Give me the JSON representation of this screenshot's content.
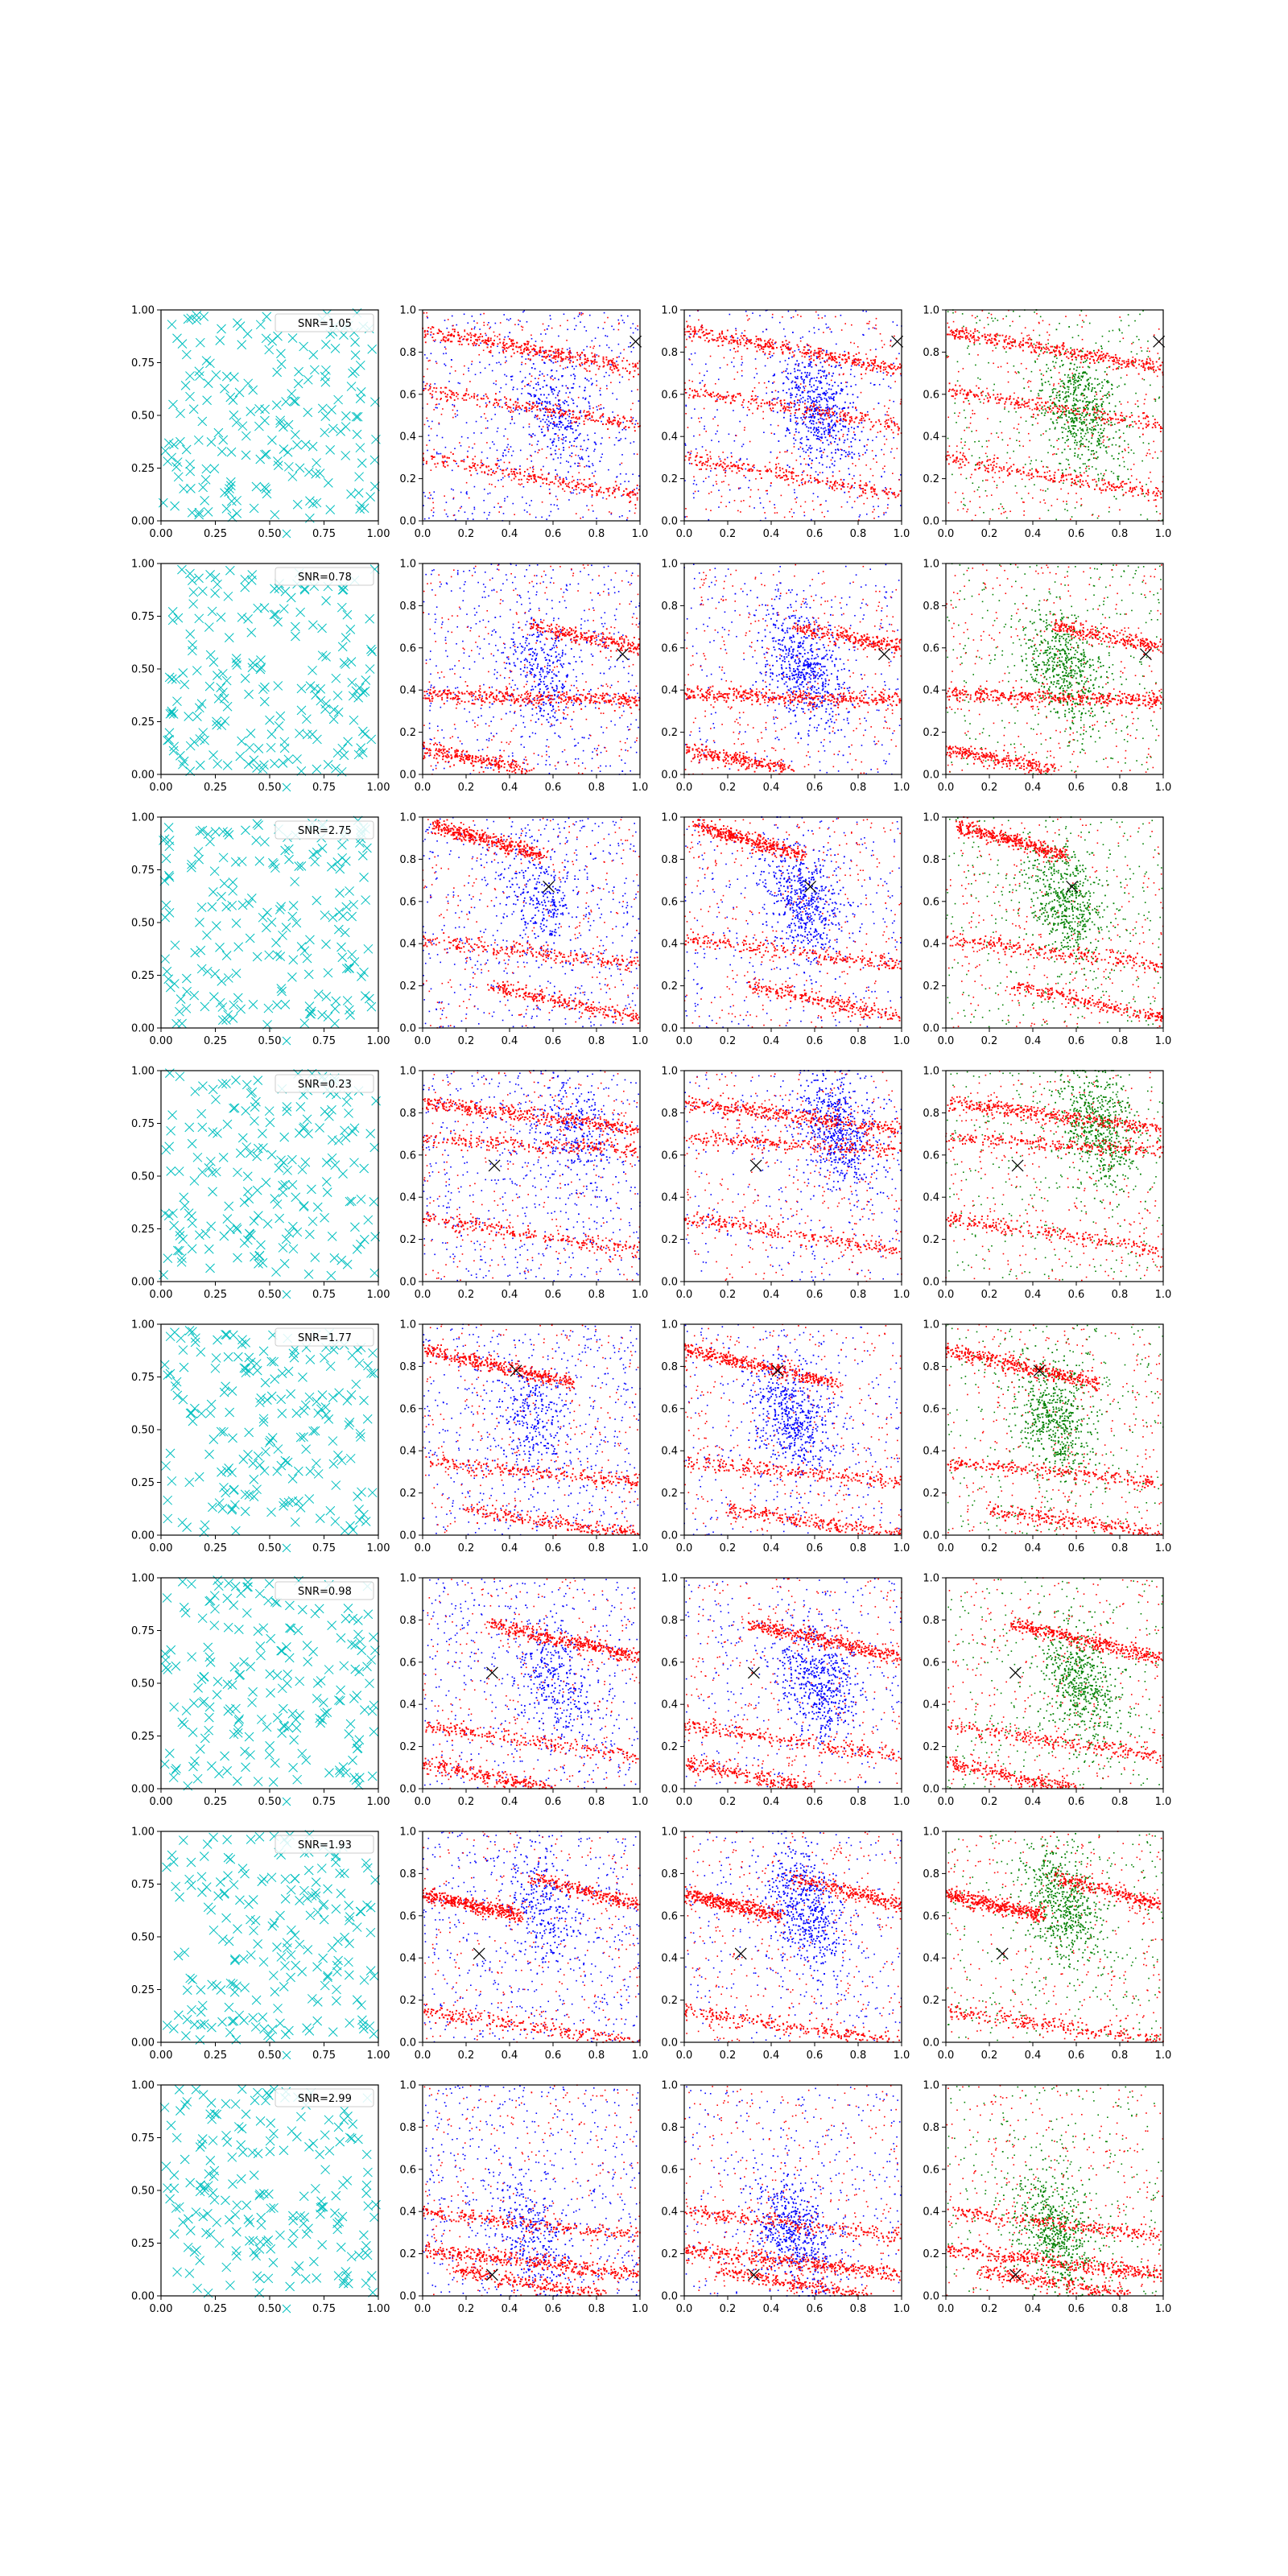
{
  "figure": {
    "rows": 8,
    "columns": 4,
    "tick_labels_col1": [
      "0.00",
      "0.25",
      "0.50",
      "0.75",
      "1.00"
    ],
    "tick_labels_other": [
      "0.0",
      "0.2",
      "0.4",
      "0.6",
      "0.8",
      "1.0"
    ],
    "colors": {
      "scatter_cyan": "#00bfbf",
      "points_red": "#ff0000",
      "points_blue": "#0000ff",
      "points_green": "#008000",
      "marker_black": "#000000",
      "axes": "#000000"
    }
  },
  "chart_data": [
    {
      "type": "scatter",
      "row": 1,
      "marker": "x",
      "color": "cyan",
      "legend": "SNR=1.05",
      "xlim": [
        0,
        1
      ],
      "ylim": [
        0,
        1
      ],
      "grid": false,
      "density_panels": [
        {
          "colors": [
            "red",
            "blue"
          ]
        },
        {
          "colors": [
            "red",
            "blue"
          ]
        },
        {
          "colors": [
            "red",
            "green"
          ]
        }
      ],
      "marked_point": [
        0.98,
        0.85
      ],
      "red_bands": [
        {
          "x0": 0.0,
          "y0": 0.9,
          "x1": 1.0,
          "y1": 0.72
        },
        {
          "x0": 0.0,
          "y0": 0.62,
          "x1": 1.0,
          "y1": 0.45
        },
        {
          "x0": 0.0,
          "y0": 0.3,
          "x1": 1.0,
          "y1": 0.12
        }
      ],
      "blue_blob": {
        "x": 0.62,
        "y": 0.52
      }
    },
    {
      "type": "scatter",
      "row": 2,
      "marker": "x",
      "color": "cyan",
      "legend": "SNR=0.78",
      "xlim": [
        0,
        1
      ],
      "ylim": [
        0,
        1
      ],
      "grid": false,
      "density_panels": [
        {
          "colors": [
            "red",
            "blue"
          ]
        },
        {
          "colors": [
            "red",
            "blue"
          ]
        },
        {
          "colors": [
            "red",
            "green"
          ]
        }
      ],
      "marked_point": [
        0.92,
        0.57
      ],
      "red_bands": [
        {
          "x0": 0.0,
          "y0": 0.38,
          "x1": 1.0,
          "y1": 0.35
        },
        {
          "x0": 0.0,
          "y0": 0.12,
          "x1": 0.5,
          "y1": 0.02
        },
        {
          "x0": 0.5,
          "y0": 0.7,
          "x1": 1.0,
          "y1": 0.6
        }
      ],
      "blue_blob": {
        "x": 0.55,
        "y": 0.5
      }
    },
    {
      "type": "scatter",
      "row": 3,
      "marker": "x",
      "color": "cyan",
      "legend": "SNR=2.75",
      "xlim": [
        0,
        1
      ],
      "ylim": [
        0,
        1
      ],
      "grid": false,
      "density_panels": [
        {
          "colors": [
            "red",
            "blue"
          ]
        },
        {
          "colors": [
            "red",
            "blue"
          ]
        },
        {
          "colors": [
            "red",
            "green"
          ]
        }
      ],
      "marked_point": [
        0.58,
        0.67
      ],
      "red_bands": [
        {
          "x0": 0.05,
          "y0": 0.96,
          "x1": 0.55,
          "y1": 0.82
        },
        {
          "x0": 0.0,
          "y0": 0.42,
          "x1": 1.0,
          "y1": 0.3
        },
        {
          "x0": 0.3,
          "y0": 0.2,
          "x1": 1.0,
          "y1": 0.05
        }
      ],
      "blue_blob": {
        "x": 0.55,
        "y": 0.6
      }
    },
    {
      "type": "scatter",
      "row": 4,
      "marker": "x",
      "color": "cyan",
      "legend": "SNR=0.23",
      "xlim": [
        0,
        1
      ],
      "ylim": [
        0,
        1
      ],
      "grid": false,
      "density_panels": [
        {
          "colors": [
            "red",
            "blue"
          ]
        },
        {
          "colors": [
            "red",
            "blue"
          ]
        },
        {
          "colors": [
            "red",
            "green"
          ]
        }
      ],
      "marked_point": [
        0.33,
        0.55
      ],
      "red_bands": [
        {
          "x0": 0.0,
          "y0": 0.85,
          "x1": 1.0,
          "y1": 0.72
        },
        {
          "x0": 0.0,
          "y0": 0.68,
          "x1": 1.0,
          "y1": 0.62
        },
        {
          "x0": 0.0,
          "y0": 0.3,
          "x1": 1.0,
          "y1": 0.15
        }
      ],
      "blue_blob": {
        "x": 0.7,
        "y": 0.72
      }
    },
    {
      "type": "scatter",
      "row": 5,
      "marker": "x",
      "color": "cyan",
      "legend": "SNR=1.77",
      "xlim": [
        0,
        1
      ],
      "ylim": [
        0,
        1
      ],
      "grid": false,
      "density_panels": [
        {
          "colors": [
            "red",
            "blue"
          ]
        },
        {
          "colors": [
            "red",
            "blue"
          ]
        },
        {
          "colors": [
            "red",
            "green"
          ]
        }
      ],
      "marked_point": [
        0.43,
        0.78
      ],
      "red_bands": [
        {
          "x0": 0.0,
          "y0": 0.88,
          "x1": 0.7,
          "y1": 0.72
        },
        {
          "x0": 0.0,
          "y0": 0.35,
          "x1": 1.0,
          "y1": 0.25
        },
        {
          "x0": 0.2,
          "y0": 0.12,
          "x1": 1.0,
          "y1": 0.0
        }
      ],
      "blue_blob": {
        "x": 0.5,
        "y": 0.55
      }
    },
    {
      "type": "scatter",
      "row": 6,
      "marker": "x",
      "color": "cyan",
      "legend": "SNR=0.98",
      "xlim": [
        0,
        1
      ],
      "ylim": [
        0,
        1
      ],
      "grid": false,
      "density_panels": [
        {
          "colors": [
            "red",
            "blue"
          ]
        },
        {
          "colors": [
            "red",
            "blue"
          ]
        },
        {
          "colors": [
            "red",
            "green"
          ]
        }
      ],
      "marked_point": [
        0.32,
        0.55
      ],
      "red_bands": [
        {
          "x0": 0.3,
          "y0": 0.78,
          "x1": 1.0,
          "y1": 0.62
        },
        {
          "x0": 0.0,
          "y0": 0.3,
          "x1": 1.0,
          "y1": 0.15
        },
        {
          "x0": 0.0,
          "y0": 0.12,
          "x1": 0.6,
          "y1": 0.0
        }
      ],
      "blue_blob": {
        "x": 0.62,
        "y": 0.5
      }
    },
    {
      "type": "scatter",
      "row": 7,
      "marker": "x",
      "color": "cyan",
      "legend": "SNR=1.93",
      "xlim": [
        0,
        1
      ],
      "ylim": [
        0,
        1
      ],
      "grid": false,
      "density_panels": [
        {
          "colors": [
            "red",
            "blue"
          ]
        },
        {
          "colors": [
            "red",
            "blue"
          ]
        },
        {
          "colors": [
            "red",
            "green"
          ]
        }
      ],
      "marked_point": [
        0.26,
        0.42
      ],
      "red_bands": [
        {
          "x0": 0.0,
          "y0": 0.7,
          "x1": 0.45,
          "y1": 0.6
        },
        {
          "x0": 0.5,
          "y0": 0.78,
          "x1": 1.0,
          "y1": 0.65
        },
        {
          "x0": 0.0,
          "y0": 0.15,
          "x1": 1.0,
          "y1": 0.0
        }
      ],
      "blue_blob": {
        "x": 0.55,
        "y": 0.65
      }
    },
    {
      "type": "scatter",
      "row": 8,
      "marker": "x",
      "color": "cyan",
      "legend": "SNR=2.99",
      "xlim": [
        0,
        1
      ],
      "ylim": [
        0,
        1
      ],
      "grid": false,
      "density_panels": [
        {
          "colors": [
            "red",
            "blue"
          ]
        },
        {
          "colors": [
            "red",
            "blue"
          ]
        },
        {
          "colors": [
            "red",
            "green"
          ]
        }
      ],
      "marked_point": [
        0.32,
        0.1
      ],
      "red_bands": [
        {
          "x0": 0.0,
          "y0": 0.22,
          "x1": 1.0,
          "y1": 0.1
        },
        {
          "x0": 0.15,
          "y0": 0.12,
          "x1": 0.85,
          "y1": 0.0
        },
        {
          "x0": 0.0,
          "y0": 0.4,
          "x1": 1.0,
          "y1": 0.28
        }
      ],
      "blue_blob": {
        "x": 0.5,
        "y": 0.3
      }
    }
  ]
}
